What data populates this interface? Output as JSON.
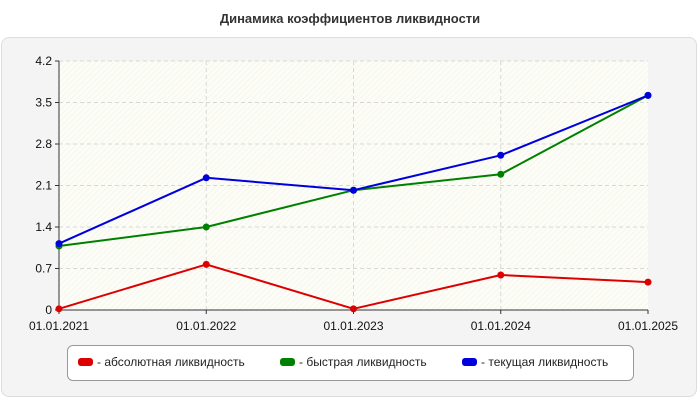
{
  "chart_data": {
    "type": "line",
    "title": "Динамика коэффициентов ликвидности",
    "categories": [
      "01.01.2021",
      "01.01.2022",
      "01.01.2023",
      "01.01.2024",
      "01.01.2025"
    ],
    "yticks": [
      "0",
      "0.7",
      "1.4",
      "2.1",
      "2.8",
      "3.5",
      "4.2"
    ],
    "ylim": [
      0,
      4.2
    ],
    "grid": true,
    "legend_position": "bottom",
    "series": [
      {
        "name": "- абсолютная ликвидность",
        "color": "#dd0000",
        "values": [
          0.02,
          0.77,
          0.02,
          0.59,
          0.47
        ]
      },
      {
        "name": "- быстрая ликвидность",
        "color": "#008000",
        "values": [
          1.08,
          1.4,
          2.02,
          2.29,
          3.62
        ]
      },
      {
        "name": "- текущая ликвидность",
        "color": "#0000dd",
        "values": [
          1.12,
          2.23,
          2.02,
          2.61,
          3.62
        ]
      }
    ]
  }
}
